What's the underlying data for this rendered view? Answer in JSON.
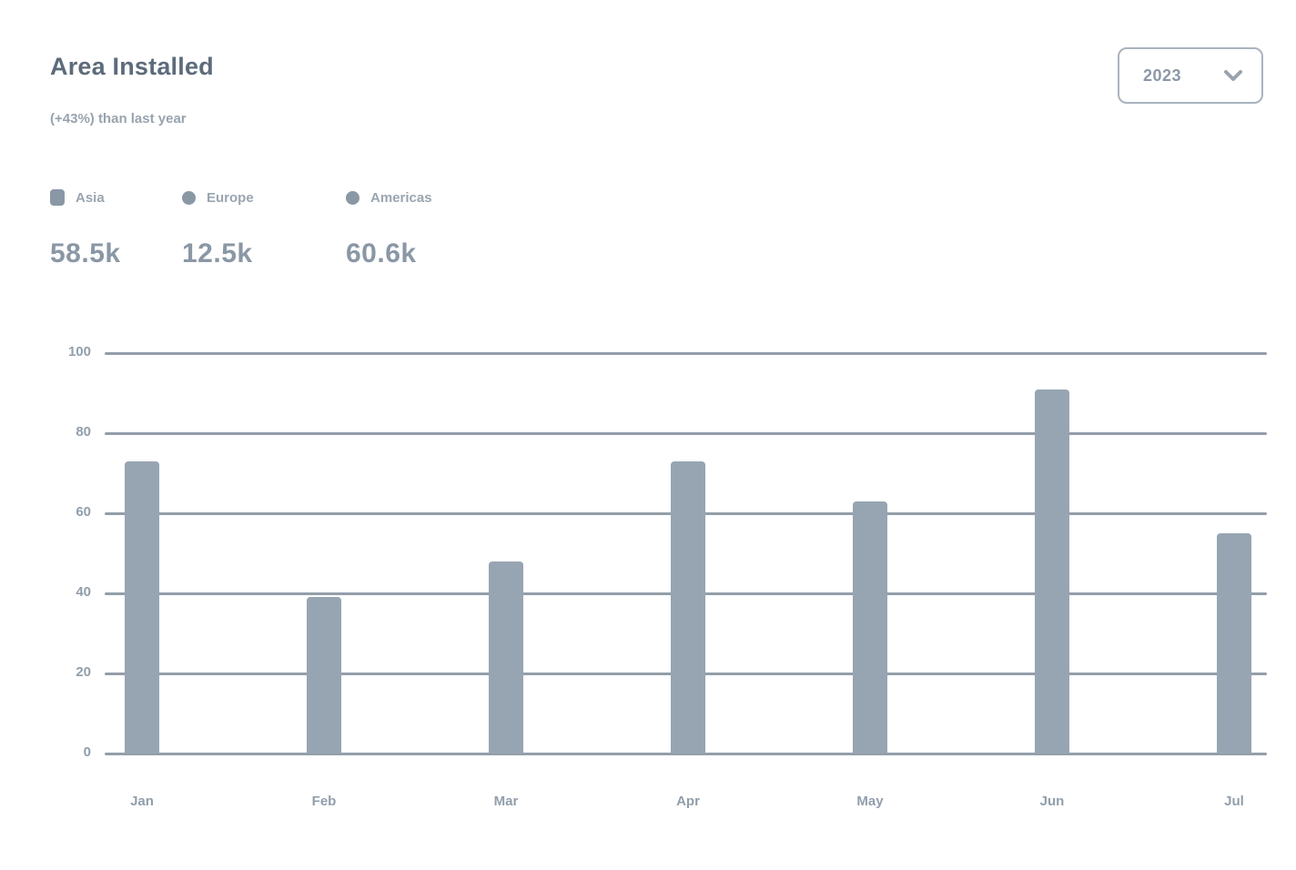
{
  "header": {
    "title": "Area Installed",
    "subtitle": "(+43%) than last year"
  },
  "controls": {
    "year_select": {
      "value": "2023",
      "icon": "chevron-down-icon"
    }
  },
  "legend": {
    "items": [
      {
        "label": "Asia",
        "value": "58.5k",
        "marker": "rounded-square"
      },
      {
        "label": "Europe",
        "value": "12.5k",
        "marker": "circle"
      },
      {
        "label": "Americas",
        "value": "60.6k",
        "marker": "circle"
      }
    ]
  },
  "chart_data": {
    "type": "bar",
    "title": "Area Installed",
    "subtitle": "(+43%) than last year",
    "categories": [
      "Jan",
      "Feb",
      "Mar",
      "Apr",
      "May",
      "Jun",
      "Jul"
    ],
    "values": [
      73,
      39,
      48,
      73,
      63,
      91,
      55
    ],
    "xlabel": "",
    "ylabel": "",
    "ylim": [
      0,
      100
    ],
    "yticks": [
      0,
      20,
      40,
      60,
      80,
      100
    ],
    "grid": true,
    "legend_position": "top-left",
    "bar_color": "#97a4b2"
  },
  "colors": {
    "title": "#5d6b7a",
    "subtitle": "#98a3ae",
    "legend_label": "#9aa5b0",
    "legend_value": "#8a97a5",
    "bar": "#97a4b2",
    "gridline": "#939ea9",
    "axis_label": "#919eab",
    "select_border": "#a9b3bd",
    "select_text": "#8b98a6"
  }
}
